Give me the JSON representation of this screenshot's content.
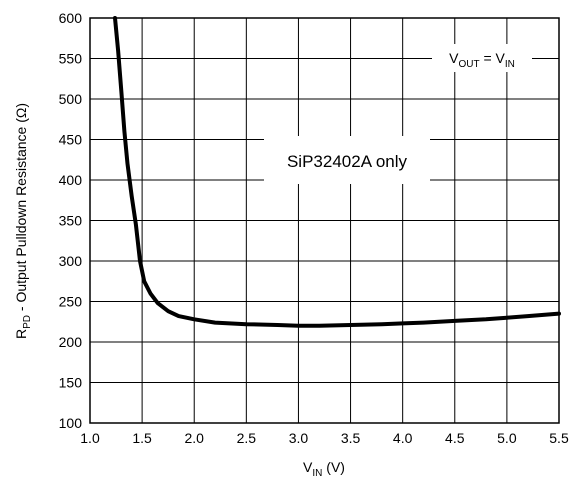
{
  "chart_data": {
    "type": "line",
    "title": "",
    "xlabel": {
      "main": "V",
      "sub": "IN",
      "suffix": " (V)"
    },
    "ylabel": {
      "main": "R",
      "sub": "PD",
      "suffix": " - Output Pulldown Resistance (Ω)"
    },
    "xlim": [
      1.0,
      5.5
    ],
    "ylim": [
      100,
      600
    ],
    "x_ticks": [
      "1.0",
      "1.5",
      "2.0",
      "2.5",
      "3.0",
      "3.5",
      "4.0",
      "4.5",
      "5.0",
      "5.5"
    ],
    "y_ticks": [
      "100",
      "150",
      "200",
      "250",
      "300",
      "350",
      "400",
      "450",
      "500",
      "550",
      "600"
    ],
    "grid": true,
    "annotations": {
      "condition": {
        "v1": "V",
        "s1": "OUT",
        "eq": " = V",
        "s2": "IN"
      },
      "device_note": "SiP32402A only"
    },
    "series": [
      {
        "x": [
          1.24,
          1.27,
          1.3,
          1.33,
          1.36,
          1.4,
          1.44,
          1.48,
          1.52,
          1.58,
          1.65,
          1.75,
          1.85,
          2.0,
          2.2,
          2.5,
          2.8,
          3.0,
          3.2,
          3.5,
          3.8,
          4.0,
          4.2,
          4.5,
          4.8,
          5.0,
          5.2,
          5.5
        ],
        "y": [
          600,
          560,
          510,
          460,
          420,
          380,
          345,
          300,
          275,
          260,
          248,
          238,
          232,
          228,
          224,
          222,
          221,
          220,
          220,
          221,
          222,
          223,
          224,
          226,
          228,
          230,
          232,
          235
        ]
      }
    ]
  }
}
